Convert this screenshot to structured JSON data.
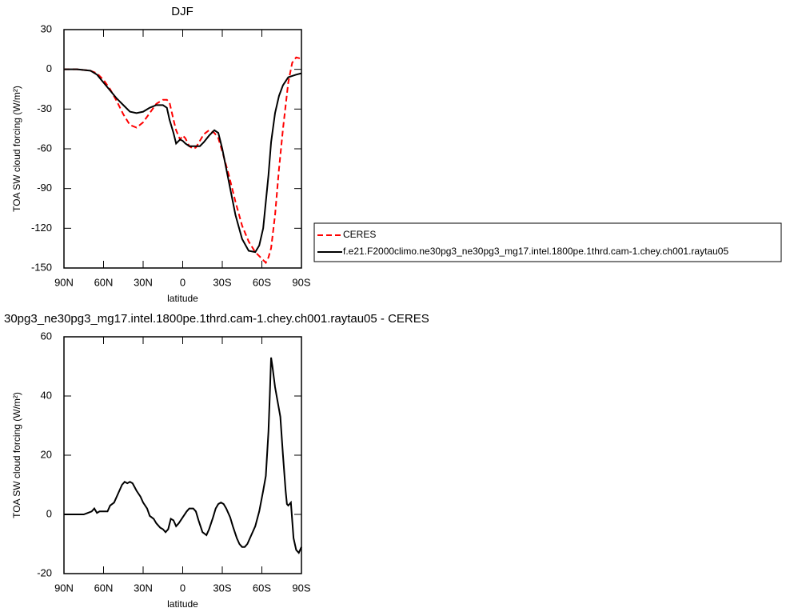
{
  "chart_data": [
    {
      "type": "line",
      "title": "DJF",
      "xlabel": "latitude",
      "ylabel": "TOA SW cloud forcing (W/m²)",
      "x": [
        90,
        80,
        70,
        65,
        60,
        55,
        50,
        45,
        40,
        35,
        30,
        25,
        20,
        15,
        12,
        10,
        7,
        5,
        2,
        0,
        -2,
        -5,
        -8,
        -10,
        -13,
        -16,
        -20,
        -24,
        -27,
        -30,
        -35,
        -40,
        -45,
        -50,
        -55,
        -58,
        -61,
        -63,
        -65,
        -67,
        -70,
        -73,
        -76,
        -80,
        -83,
        -86,
        -90
      ],
      "series": [
        {
          "name": "CERES",
          "color": "#ff0000",
          "dashed": true,
          "values": [
            0,
            0,
            -1,
            -3,
            -8,
            -15,
            -24,
            -34,
            -42,
            -44,
            -40,
            -33,
            -26,
            -23,
            -23,
            -25,
            -38,
            -46,
            -53,
            -50,
            -52,
            -58,
            -60,
            -59,
            -54,
            -49,
            -46,
            -48,
            -52,
            -62,
            -80,
            -100,
            -118,
            -130,
            -138,
            -141,
            -144,
            -146,
            -142,
            -135,
            -110,
            -75,
            -45,
            -10,
            5,
            9,
            8
          ]
        },
        {
          "name": "f.e21.F2000climo.ne30pg3_ne30pg3_mg17.intel.1800pe.1thrd.cam-1.chey.ch001.raytau05",
          "color": "#000000",
          "dashed": false,
          "values": [
            0,
            0,
            -1,
            -4,
            -10,
            -16,
            -22,
            -27,
            -32,
            -33,
            -32,
            -29,
            -27,
            -27,
            -29,
            -38,
            -48,
            -56,
            -53,
            -54,
            -56,
            -58,
            -58,
            -58,
            -58,
            -55,
            -50,
            -46,
            -48,
            -60,
            -85,
            -110,
            -128,
            -137,
            -138,
            -133,
            -120,
            -100,
            -80,
            -55,
            -33,
            -20,
            -12,
            -6,
            -5,
            -4,
            -3
          ]
        }
      ],
      "xlim": [
        90,
        -90
      ],
      "xticks": [
        {
          "value": 90,
          "label": "90N"
        },
        {
          "value": 60,
          "label": "60N"
        },
        {
          "value": 30,
          "label": "30N"
        },
        0,
        {
          "value": -30,
          "label": "30S"
        },
        {
          "value": -60,
          "label": "60S"
        },
        {
          "value": -90,
          "label": "90S"
        }
      ],
      "ylim": [
        -150,
        30
      ],
      "yticks": [
        -150,
        -120,
        -90,
        -60,
        -30,
        0,
        30
      ]
    },
    {
      "type": "line",
      "title": "30pg3_ne30pg3_mg17.intel.1800pe.1thrd.cam-1.chey.ch001.raytau05 - CERES",
      "xlabel": "latitude",
      "ylabel": "TOA SW cloud forcing (W/m²)",
      "x": [
        90,
        80,
        75,
        72,
        69,
        67,
        65,
        63,
        60,
        57,
        55,
        52,
        49,
        46,
        44,
        42,
        40,
        38,
        35,
        32,
        30,
        27,
        25,
        22,
        20,
        17,
        15,
        13,
        11,
        9,
        7,
        5,
        3,
        0,
        -3,
        -5,
        -8,
        -10,
        -12,
        -15,
        -18,
        -20,
        -23,
        -25,
        -27,
        -29,
        -31,
        -33,
        -36,
        -38,
        -41,
        -43,
        -45,
        -47,
        -49,
        -52,
        -55,
        -58,
        -61,
        -63,
        -65,
        -66,
        -67,
        -68,
        -70,
        -72,
        -74,
        -76,
        -78,
        -79,
        -80,
        -82,
        -84,
        -86,
        -88,
        -90
      ],
      "values": [
        0,
        0,
        0,
        0.5,
        1,
        2,
        0.5,
        1,
        1,
        1,
        3,
        4,
        7,
        10,
        11,
        10.5,
        11,
        10.5,
        8,
        6,
        4,
        2,
        -0.5,
        -1.5,
        -3,
        -4.5,
        -5,
        -6,
        -5,
        -1.5,
        -2,
        -4,
        -3,
        -1,
        1,
        2,
        2,
        1,
        -2,
        -6,
        -7,
        -5,
        -1,
        2,
        3.5,
        4,
        3.5,
        2,
        -1,
        -4,
        -8,
        -10,
        -11,
        -11,
        -10,
        -7,
        -4,
        1,
        8,
        13,
        28,
        40,
        53,
        50,
        43,
        38,
        33,
        20,
        8,
        3.5,
        3,
        4,
        -8,
        -12,
        -13,
        -11
      ],
      "color": "#000000",
      "xlim": [
        90,
        -90
      ],
      "xticks": [
        {
          "value": 90,
          "label": "90N"
        },
        {
          "value": 60,
          "label": "60N"
        },
        {
          "value": 30,
          "label": "30N"
        },
        0,
        {
          "value": -30,
          "label": "30S"
        },
        {
          "value": -60,
          "label": "60S"
        },
        {
          "value": -90,
          "label": "90S"
        }
      ],
      "ylim": [
        -20,
        60
      ],
      "yticks": [
        -20,
        0,
        20,
        40,
        60
      ]
    }
  ]
}
